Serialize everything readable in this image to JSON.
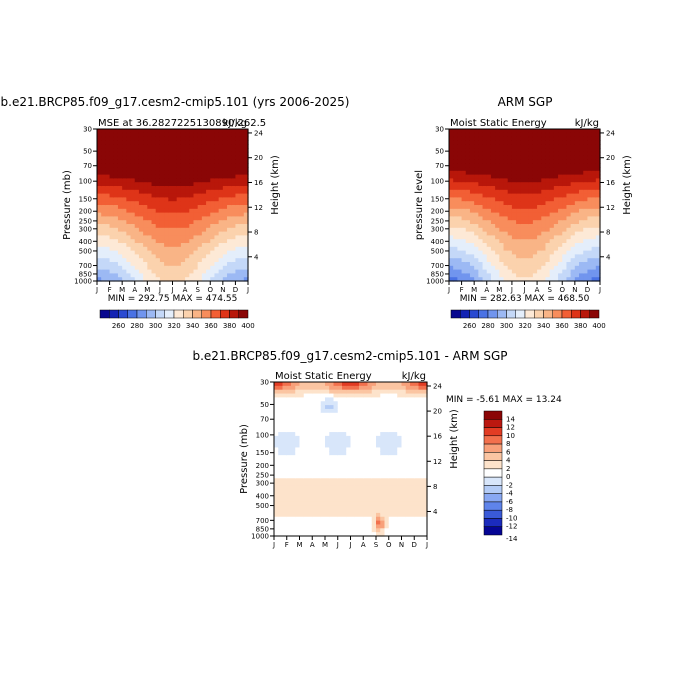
{
  "colors": {
    "temp_scale": [
      "#08088f",
      "#1323b3",
      "#2a4ad1",
      "#4a72e4",
      "#7195ee",
      "#9cb9f4",
      "#c4d8f8",
      "#e4eefb",
      "#fde9d6",
      "#fbd2ad",
      "#f9b486",
      "#f88d5c",
      "#f25f35",
      "#de3418",
      "#b8170a",
      "#8a0606"
    ],
    "diff_scale": [
      "#050594",
      "#1b2bbd",
      "#3a5ad8",
      "#5f84ea",
      "#89a8f2",
      "#b4ccf6",
      "#d8e6fa",
      "#ffffff",
      "#fde3cb",
      "#fbc5a2",
      "#f8a07a",
      "#f2704d",
      "#e23c24",
      "#bb1810",
      "#8b0606"
    ]
  },
  "chart_data": [
    {
      "type": "heatmap",
      "title": "b.e21.BRCP85.f09_g17.cesm2-cmip5.101 (yrs 2006-2025)",
      "subtitle_left": "MSE at 36.2827225130890,262.5",
      "subtitle_right": "kJ/kg",
      "xlabel": "",
      "ylabel": "Pressure (mb)",
      "ylabel_right": "Height (km)",
      "x_ticks": [
        "J",
        "F",
        "M",
        "A",
        "M",
        "J",
        "J",
        "A",
        "S",
        "O",
        "N",
        "D",
        "J"
      ],
      "y_ticks": [
        "30",
        "50",
        "70",
        "100",
        "150",
        "200",
        "250",
        "300",
        "400",
        "500",
        "700",
        "850",
        "1000"
      ],
      "y_ticks_right": [
        "24",
        "20",
        "16",
        "12",
        "8",
        "4"
      ],
      "stats": "MIN = 292.75  MAX = 474.55",
      "colorbar_labels": [
        "260",
        "280",
        "300",
        "320",
        "340",
        "360",
        "380",
        "400"
      ],
      "variant": "model"
    },
    {
      "type": "heatmap",
      "title": "ARM SGP",
      "subtitle_left": "Moist Static Energy",
      "subtitle_right": "kJ/kg",
      "xlabel": "",
      "ylabel": "pressure level",
      "ylabel_right": "Height (km)",
      "x_ticks": [
        "J",
        "F",
        "M",
        "A",
        "M",
        "J",
        "J",
        "A",
        "S",
        "O",
        "N",
        "D",
        "J"
      ],
      "y_ticks": [
        "30",
        "50",
        "70",
        "100",
        "150",
        "200",
        "250",
        "300",
        "400",
        "500",
        "700",
        "850",
        "1000"
      ],
      "y_ticks_right": [
        "24",
        "20",
        "16",
        "12",
        "8",
        "4"
      ],
      "stats": "MIN = 282.63  MAX = 468.50",
      "colorbar_labels": [
        "260",
        "280",
        "300",
        "320",
        "340",
        "360",
        "380",
        "400"
      ],
      "variant": "obs"
    },
    {
      "type": "heatmap",
      "title": "b.e21.BRCP85.f09_g17.cesm2-cmip5.101 - ARM SGP",
      "subtitle_left": "Moist Static Energy",
      "subtitle_right": "kJ/kg",
      "xlabel": "",
      "ylabel": "Pressure (mb)",
      "ylabel_right": "Height (km)",
      "x_ticks": [
        "J",
        "F",
        "M",
        "A",
        "M",
        "J",
        "J",
        "A",
        "S",
        "O",
        "N",
        "D",
        "J"
      ],
      "y_ticks": [
        "30",
        "50",
        "70",
        "100",
        "150",
        "200",
        "250",
        "300",
        "400",
        "500",
        "700",
        "850",
        "1000"
      ],
      "y_ticks_right": [
        "24",
        "20",
        "16",
        "12",
        "8",
        "4"
      ],
      "stats": "MIN =  -5.61  MAX =  13.24",
      "colorbar_labels": [
        "14",
        "12",
        "10",
        "8",
        "6",
        "4",
        "2",
        "0",
        "-2",
        "-4",
        "-6",
        "-8",
        "-10",
        "-12",
        "-14"
      ],
      "variant": "diff"
    }
  ]
}
